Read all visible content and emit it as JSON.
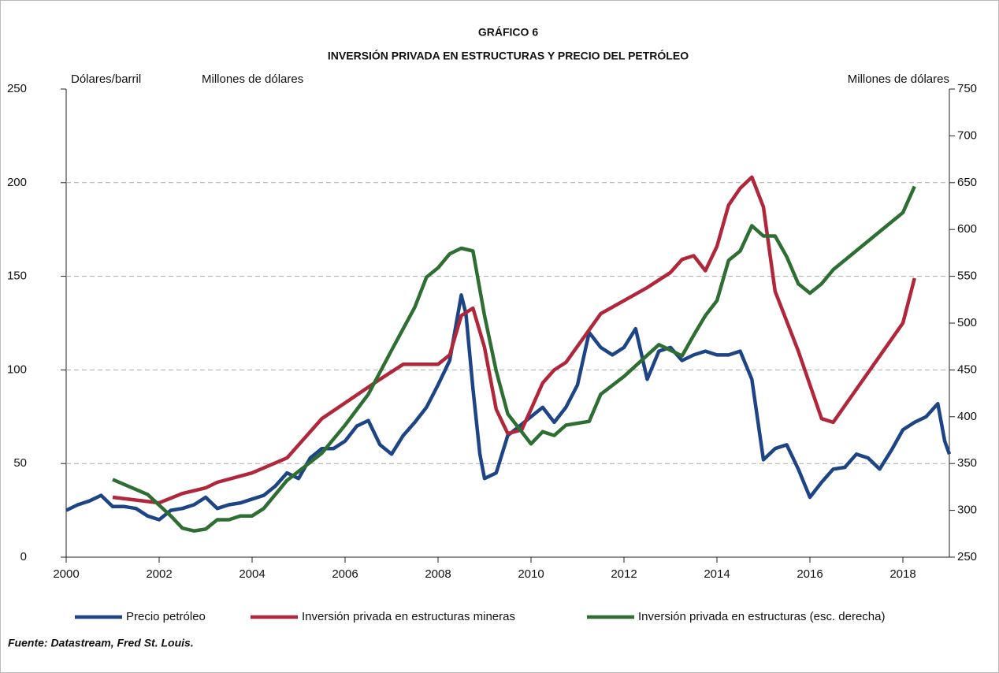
{
  "chart_data": {
    "type": "line",
    "title": "GRÁFICO 6",
    "subtitle": "INVERSIÓN PRIVADA EN ESTRUCTURAS Y PRECIO DEL PETRÓLEO",
    "ylabel": "Dólares/barril",
    "ylabel2": "Millones de dólares",
    "y2label": "Millones de dólares",
    "source": "Fuente: Datastream, Fred St. Louis.",
    "xlim": [
      2000,
      2019
    ],
    "xticks": [
      2000,
      2002,
      2004,
      2006,
      2008,
      2010,
      2012,
      2014,
      2016,
      2018
    ],
    "ylim": [
      0,
      250
    ],
    "yticks": [
      0,
      50,
      100,
      150,
      200,
      250
    ],
    "y2lim": [
      250,
      750
    ],
    "y2ticks": [
      250,
      300,
      350,
      400,
      450,
      500,
      550,
      600,
      650,
      700,
      750
    ],
    "grid": true,
    "series": [
      {
        "name": "Precio petróleo",
        "color": "#1d4484",
        "x": [
          2000,
          2000.25,
          2000.5,
          2000.75,
          2001,
          2001.25,
          2001.5,
          2001.75,
          2002,
          2002.25,
          2002.5,
          2002.75,
          2003,
          2003.25,
          2003.5,
          2003.75,
          2004,
          2004.25,
          2004.5,
          2004.75,
          2005,
          2005.25,
          2005.5,
          2005.75,
          2006,
          2006.25,
          2006.5,
          2006.75,
          2007,
          2007.25,
          2007.5,
          2007.75,
          2008,
          2008.25,
          2008.5,
          2008.6,
          2008.75,
          2008.9,
          2009,
          2009.25,
          2009.5,
          2009.75,
          2010,
          2010.25,
          2010.5,
          2010.75,
          2011,
          2011.25,
          2011.5,
          2011.75,
          2012,
          2012.25,
          2012.5,
          2012.75,
          2013,
          2013.25,
          2013.5,
          2013.75,
          2014,
          2014.25,
          2014.5,
          2014.75,
          2015,
          2015.25,
          2015.5,
          2015.75,
          2016,
          2016.25,
          2016.5,
          2016.75,
          2017,
          2017.25,
          2017.5,
          2017.75,
          2018,
          2018.25,
          2018.5,
          2018.75,
          2018.9,
          2019
        ],
        "values": [
          25,
          28,
          30,
          33,
          27,
          27,
          26,
          22,
          20,
          25,
          26,
          28,
          32,
          26,
          28,
          29,
          31,
          33,
          38,
          45,
          42,
          53,
          58,
          58,
          62,
          70,
          73,
          60,
          55,
          65,
          72,
          80,
          92,
          105,
          140,
          130,
          90,
          55,
          42,
          45,
          65,
          70,
          75,
          80,
          72,
          80,
          92,
          120,
          112,
          108,
          112,
          122,
          95,
          110,
          112,
          105,
          108,
          110,
          108,
          108,
          110,
          95,
          52,
          58,
          60,
          47,
          32,
          40,
          47,
          48,
          55,
          53,
          47,
          57,
          68,
          72,
          75,
          82,
          62,
          55
        ]
      },
      {
        "name": "Inversión privada en estructuras mineras",
        "color": "#b0263a",
        "x": [
          2001,
          2002,
          2002.5,
          2003,
          2003.25,
          2004,
          2004.75,
          2005.5,
          2006.75,
          2007.25,
          2008,
          2008.25,
          2008.5,
          2008.75,
          2009,
          2009.25,
          2009.5,
          2009.8,
          2010,
          2010.25,
          2010.5,
          2010.75,
          2011.5,
          2012.5,
          2013,
          2013.25,
          2013.5,
          2013.75,
          2014,
          2014.25,
          2014.5,
          2014.75,
          2015,
          2015.25,
          2015.75,
          2016.25,
          2016.5,
          2018,
          2018.25
        ],
        "values": [
          32,
          29,
          34,
          37,
          40,
          45,
          53,
          74,
          95,
          103,
          103,
          108,
          129,
          133,
          112,
          79,
          66,
          68,
          79,
          93,
          100,
          104,
          130,
          144,
          152,
          159,
          161,
          153,
          166,
          188,
          197,
          203,
          187,
          142,
          110,
          74,
          72,
          125,
          149
        ]
      },
      {
        "name": "Inversión privada en estructuras (esc. derecha)",
        "color": "#2e6e32",
        "axis": "y2",
        "x": [
          2001,
          2001.75,
          2002.25,
          2002.5,
          2002.75,
          2003,
          2003.25,
          2003.5,
          2003.75,
          2004,
          2004.25,
          2004.75,
          2005.5,
          2006,
          2006.5,
          2007,
          2007.5,
          2007.75,
          2008,
          2008.25,
          2008.5,
          2008.75,
          2009,
          2009.25,
          2009.5,
          2010,
          2010.25,
          2010.5,
          2010.75,
          2011.25,
          2011.5,
          2012,
          2012.75,
          2013.25,
          2013.5,
          2013.75,
          2014,
          2014.25,
          2014.5,
          2014.75,
          2015,
          2015.25,
          2015.5,
          2015.75,
          2016,
          2016.25,
          2016.5,
          2018,
          2018.25
        ],
        "values": [
          333,
          317,
          294,
          281,
          278,
          280,
          290,
          290,
          294,
          294,
          302,
          332,
          361,
          391,
          424,
          471,
          517,
          549,
          559,
          574,
          580,
          577,
          508,
          449,
          403,
          371,
          384,
          380,
          391,
          395,
          424,
          443,
          477,
          465,
          487,
          508,
          524,
          567,
          577,
          604,
          593,
          593,
          571,
          542,
          532,
          542,
          557,
          618,
          646
        ]
      }
    ]
  }
}
